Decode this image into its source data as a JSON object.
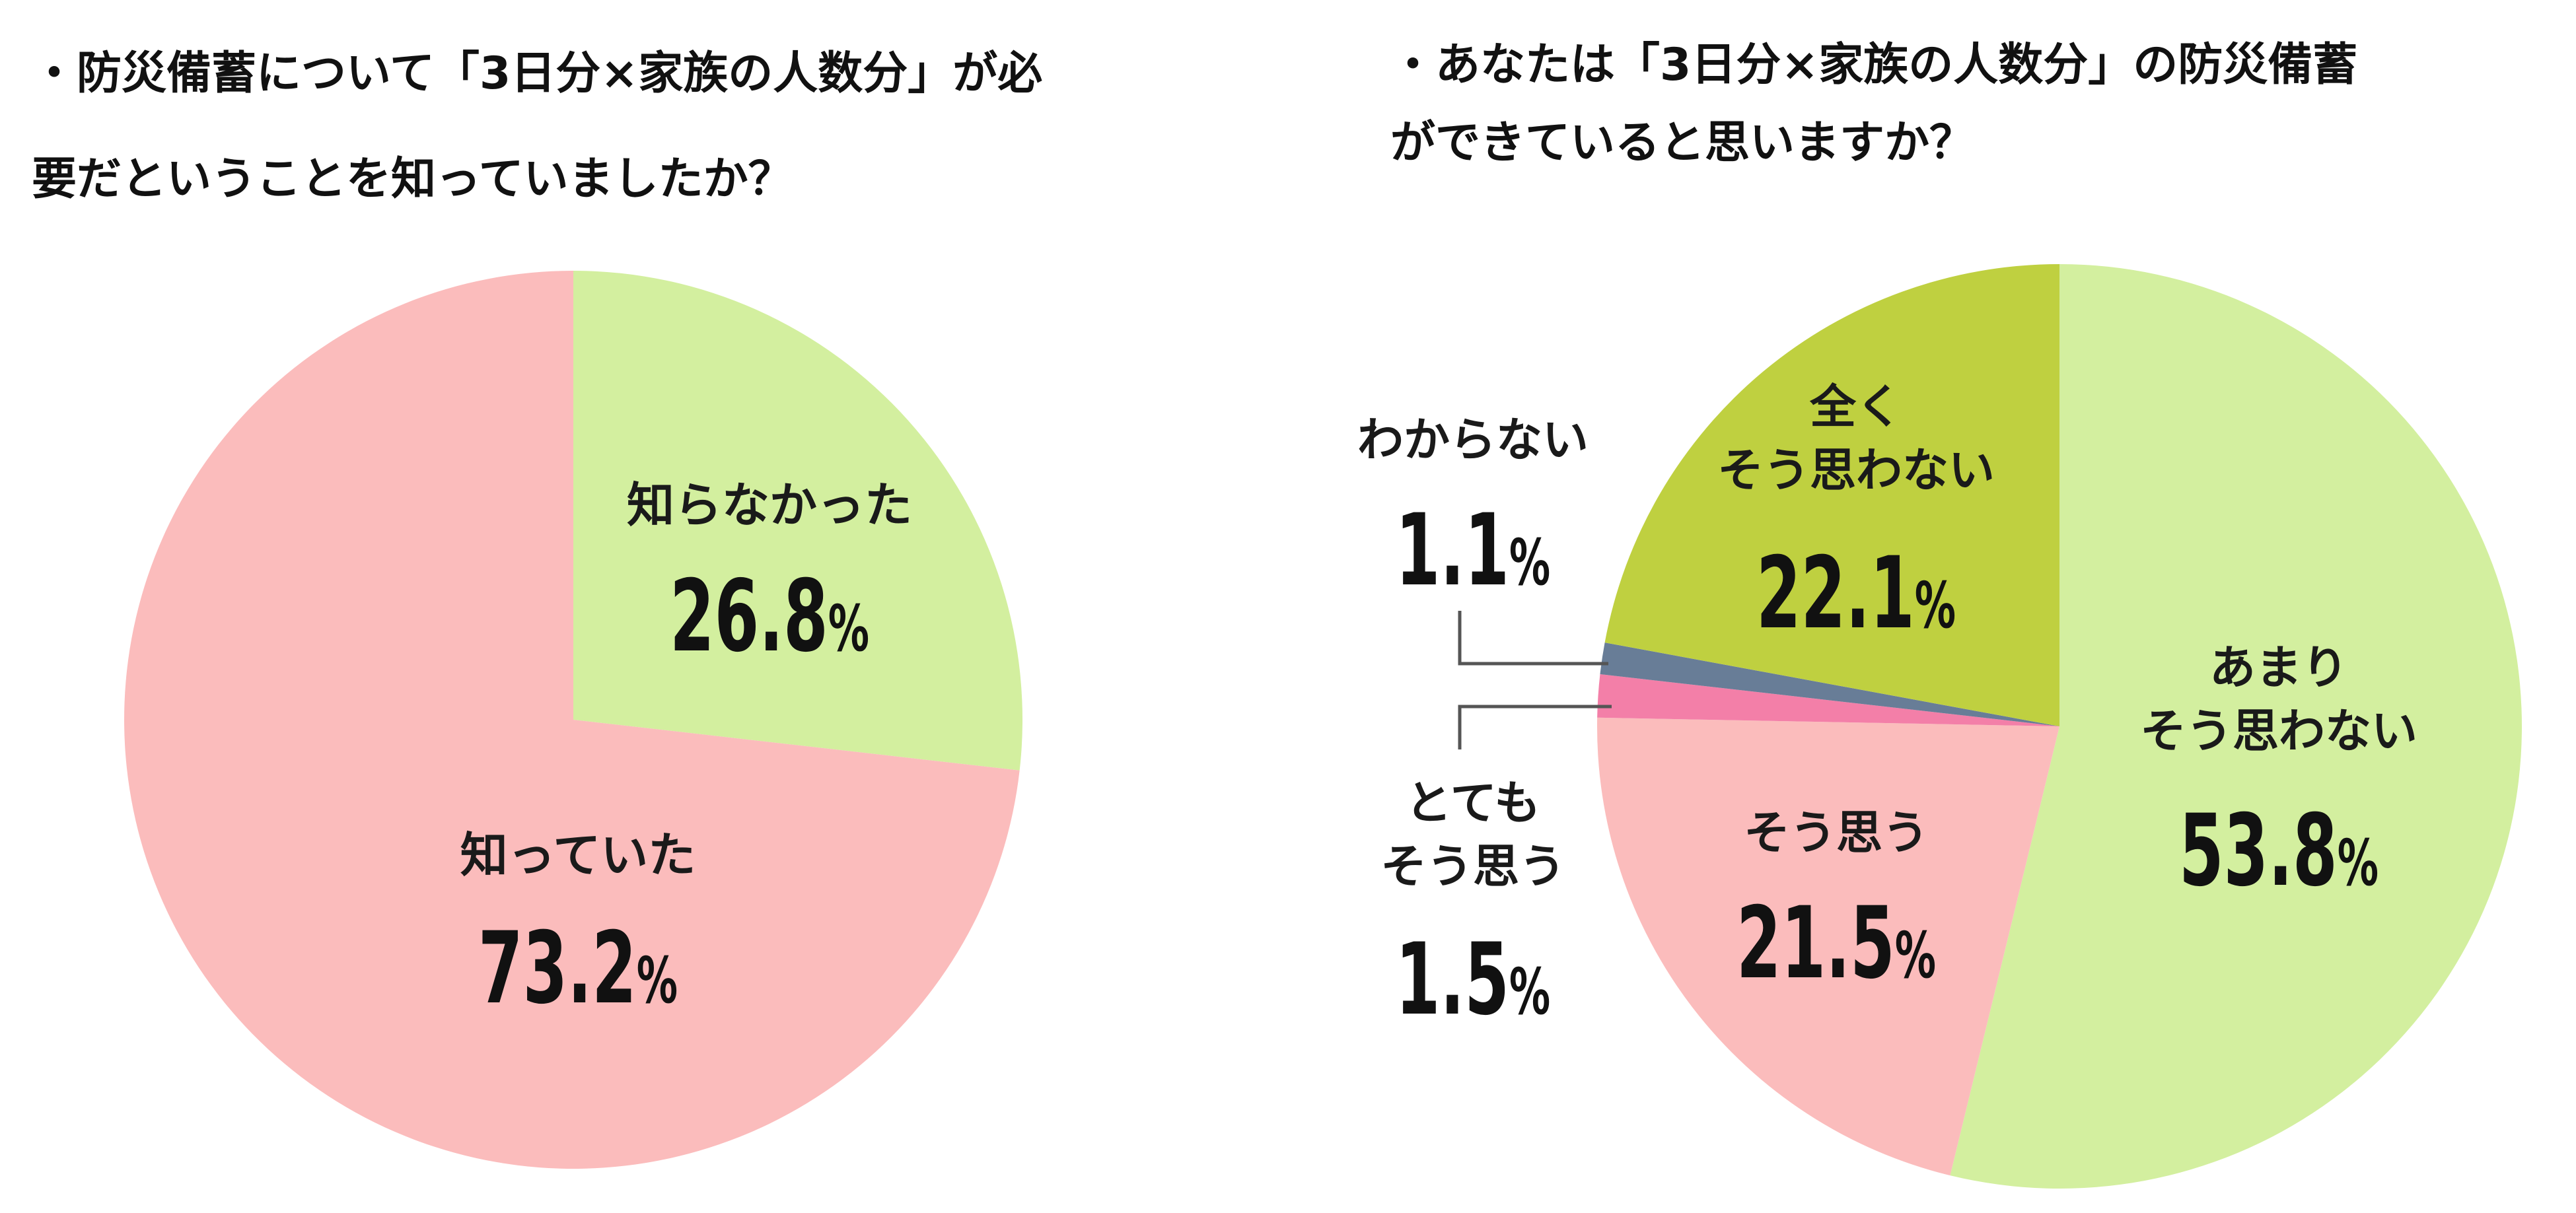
{
  "titles": {
    "left_line1": "・防災備蓄について「3日分×家族の人数分」が必",
    "left_line2": "要だということを知っていましたか？",
    "right_line1": "・あなたは「3日分×家族の人数分」の防災備蓄",
    "right_line2": "ができていると思いますか？"
  },
  "chart_data": [
    {
      "type": "pie",
      "title": "・防災備蓄について「3日分×家族の人数分」が必要だということを知っていましたか？",
      "slices": [
        {
          "label": "知らなかった",
          "value": 26.8,
          "value_text": "26.8",
          "color": "#d3ef9f"
        },
        {
          "label": "知っていた",
          "value": 73.2,
          "value_text": "73.2",
          "color": "#fbbcbc"
        }
      ],
      "unit": "%",
      "start": "12 o'clock",
      "direction": "clockwise"
    },
    {
      "type": "pie",
      "title": "・あなたは「3日分×家族の人数分」の防災備蓄ができていると思いますか？",
      "slices": [
        {
          "label": "あまり\nそう思わない",
          "value": 53.8,
          "value_text": "53.8",
          "color": "#d3ef9f"
        },
        {
          "label": "そう思う",
          "value": 21.5,
          "value_text": "21.5",
          "color": "#fbbcbc"
        },
        {
          "label": "とても\nそう思う",
          "value": 1.5,
          "value_text": "1.5",
          "color": "#f37fa8"
        },
        {
          "label": "わからない",
          "value": 1.1,
          "value_text": "1.1",
          "color": "#687d97"
        },
        {
          "label": "全く\nそう思わない",
          "value": 22.1,
          "value_text": "22.1",
          "color": "#bfd040"
        }
      ],
      "unit": "%",
      "start": "12 o'clock",
      "direction": "clockwise"
    }
  ]
}
